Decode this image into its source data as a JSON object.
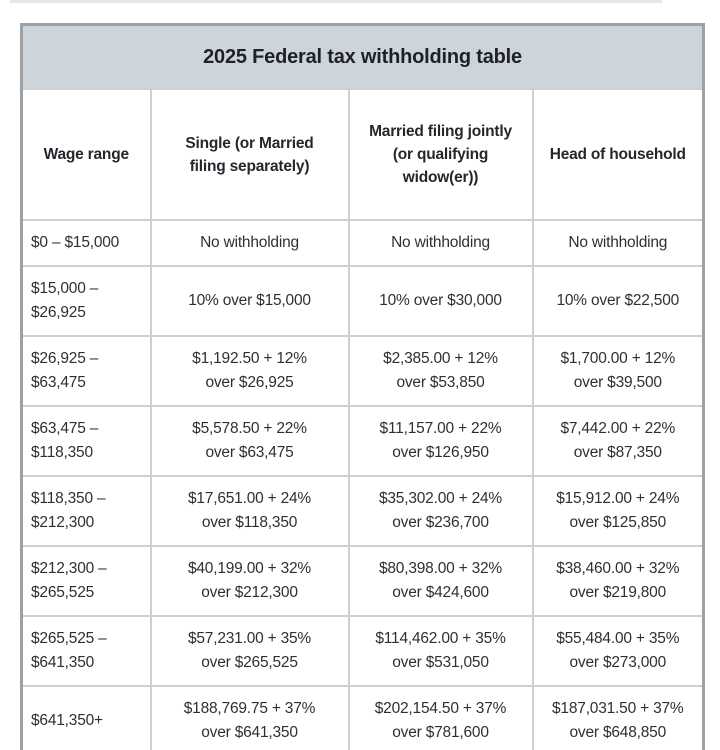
{
  "table": {
    "title": "2025 Federal tax withholding table",
    "columns": [
      "Wage range",
      "Single (or Married\nfiling separately)",
      "Married filing jointly\n(or qualifying\nwidow(er))",
      "Head of household"
    ],
    "rows": [
      {
        "wage_range": "$0 – $15,000",
        "single": "No withholding",
        "married_jointly": "No withholding",
        "head_of_household": "No withholding"
      },
      {
        "wage_range": "$15,000 –\n$26,925",
        "single": "10% over $15,000",
        "married_jointly": "10% over $30,000",
        "head_of_household": "10% over $22,500"
      },
      {
        "wage_range": "$26,925 –\n$63,475",
        "single": "$1,192.50 + 12%\nover $26,925",
        "married_jointly": "$2,385.00 + 12%\nover $53,850",
        "head_of_household": "$1,700.00 + 12%\nover $39,500"
      },
      {
        "wage_range": "$63,475 –\n$118,350",
        "single": "$5,578.50 + 22%\nover $63,475",
        "married_jointly": "$11,157.00 + 22%\nover $126,950",
        "head_of_household": "$7,442.00 + 22%\nover $87,350"
      },
      {
        "wage_range": "$118,350 –\n$212,300",
        "single": "$17,651.00 + 24%\nover $118,350",
        "married_jointly": "$35,302.00 + 24%\nover $236,700",
        "head_of_household": "$15,912.00 + 24%\nover $125,850"
      },
      {
        "wage_range": "$212,300 –\n$265,525",
        "single": "$40,199.00 + 32%\nover $212,300",
        "married_jointly": "$80,398.00 + 32%\nover $424,600",
        "head_of_household": "$38,460.00 + 32%\nover $219,800"
      },
      {
        "wage_range": "$265,525 –\n$641,350",
        "single": "$57,231.00 + 35%\nover $265,525",
        "married_jointly": "$114,462.00 + 35%\nover $531,050",
        "head_of_household": "$55,484.00 + 35%\nover $273,000"
      },
      {
        "wage_range": "$641,350+",
        "single": "$188,769.75 + 37%\nover $641,350",
        "married_jointly": "$202,154.50 + 37%\nover $781,600",
        "head_of_household": "$187,031.50 + 37%\nover $648,850"
      }
    ],
    "colors": {
      "title_background": "#cdd5da",
      "outer_border": "#9aa1a7",
      "inner_border": "#ccd1d6",
      "text": "#2c3035"
    }
  }
}
